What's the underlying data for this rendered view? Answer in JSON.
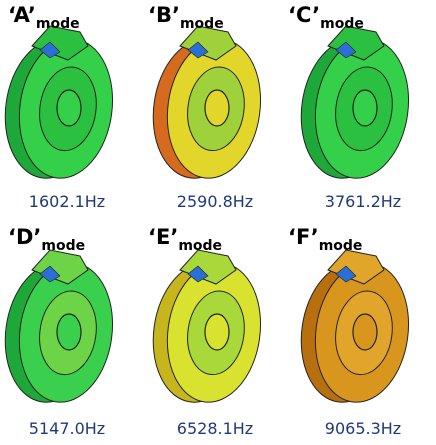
{
  "panels": [
    {
      "label": "‘A’",
      "sub": "mode",
      "freq": "1602.1Hz"
    },
    {
      "label": "‘B’",
      "sub": "mode",
      "freq": "2590.8Hz"
    },
    {
      "label": "‘C’",
      "sub": "mode",
      "freq": "3761.2Hz"
    },
    {
      "label": "‘D’",
      "sub": "mode",
      "freq": "5147.0Hz"
    },
    {
      "label": "‘E’",
      "sub": "mode",
      "freq": "6528.1Hz"
    },
    {
      "label": "‘F’",
      "sub": "mode",
      "freq": "9065.3Hz"
    }
  ]
}
